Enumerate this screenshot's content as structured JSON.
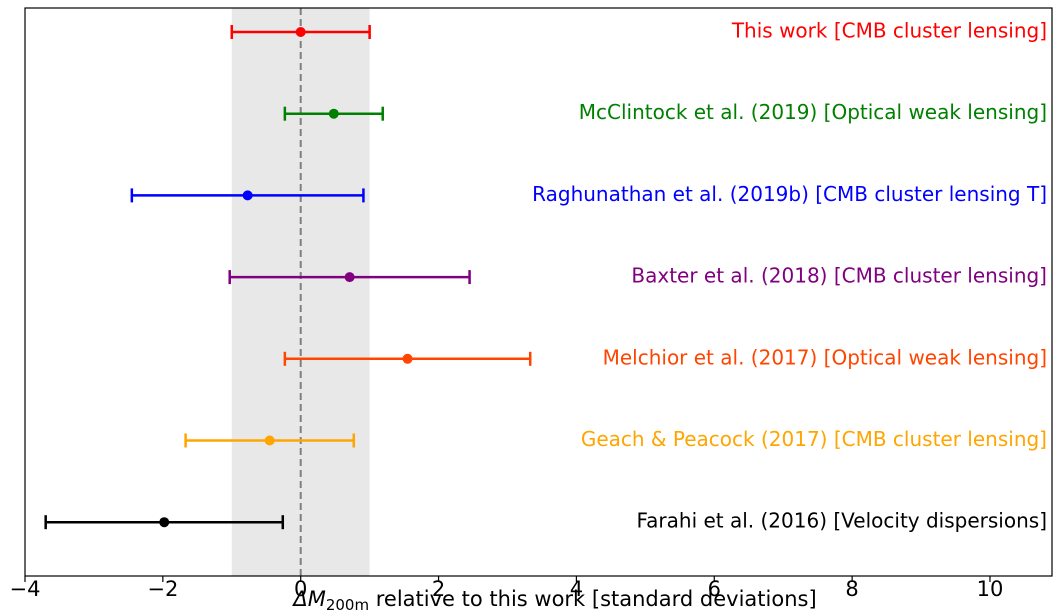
{
  "chart_data": {
    "type": "errorbar",
    "xlabel": {
      "symbol": "ΔM",
      "subscript": "200m",
      "text": " relative to this work [standard deviations]"
    },
    "xlim": [
      -4,
      10.9
    ],
    "xticks": [
      {
        "value": -4,
        "label": "−4"
      },
      {
        "value": -2,
        "label": "−2"
      },
      0,
      2,
      4,
      6,
      8,
      10
    ],
    "band": [
      -1,
      1
    ],
    "band_color": "#e8e8e8",
    "refline": 0,
    "series": [
      {
        "name": "This work [CMB cluster lensing]",
        "color": "#ff0000",
        "value": 0,
        "error": 1
      },
      {
        "name": "McClintock et al. (2019) [Optical weak lensing]",
        "color": "#008000",
        "value": 0.48,
        "error": 0.71
      },
      {
        "name": "Raghunathan et al. (2019b) [CMB cluster lensing T]",
        "color": "#0000ff",
        "value": -0.77,
        "error": 1.68
      },
      {
        "name": "Baxter et al. (2018) [CMB cluster lensing]",
        "color": "#800080",
        "value": 0.71,
        "error": 1.74
      },
      {
        "name": "Melchior et al. (2017) [Optical weak lensing]",
        "color": "#ff4500",
        "value": 1.55,
        "error": 1.78
      },
      {
        "name": "Geach & Peacock (2017) [CMB cluster lensing]",
        "color": "#ffa500",
        "value": -0.45,
        "error": 1.22
      },
      {
        "name": "Farahi et al. (2016) [Velocity dispersions]",
        "color": "#000000",
        "value": -1.98,
        "error": 1.72
      }
    ]
  }
}
